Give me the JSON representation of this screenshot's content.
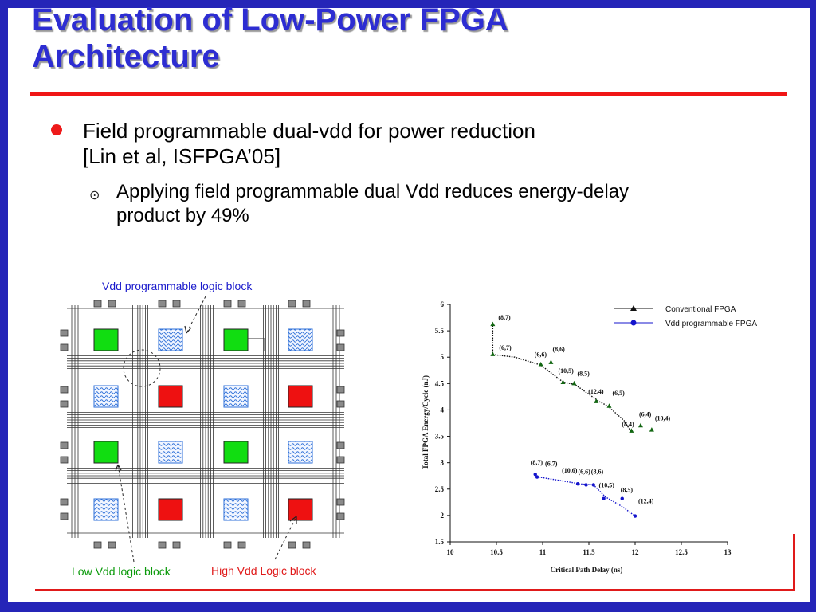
{
  "slide": {
    "title_line1": "Evaluation of Low-Power FPGA",
    "title_line2": "Architecture",
    "bullet1_line1": "Field programmable dual-vdd for power reduction",
    "bullet1_line2": "[Lin et al, ISFPGA’05]",
    "sub_line1": "Applying field programmable dual Vdd reduces energy-delay",
    "sub_line2": "product by 49%",
    "sub_bullet_glyph": "⊙"
  },
  "diagram": {
    "label_top": "Vdd programmable  logic block",
    "label_low": "Low Vdd logic block",
    "label_high": "High Vdd Logic block",
    "colors": {
      "low": "#11dd11",
      "high": "#ee1111",
      "programmable": "#2c6fd8",
      "label_blue": "#1b1bcc",
      "label_green": "#0a9a0a",
      "label_red": "#e01818"
    },
    "grid": [
      [
        "low",
        "programmable",
        "low",
        "programmable"
      ],
      [
        "programmable",
        "high",
        "programmable",
        "high"
      ],
      [
        "low",
        "programmable",
        "low",
        "programmable"
      ],
      [
        "programmable",
        "high",
        "programmable",
        "high"
      ]
    ]
  },
  "chart_data": {
    "type": "scatter",
    "xlabel": "Critical Path Delay (ns)",
    "ylabel": "Total FPGA Energy/Cycle (nJ)",
    "xlim": [
      10,
      13
    ],
    "ylim": [
      1.5,
      6
    ],
    "xticks": [
      "10",
      "10.5",
      "11",
      "11.5",
      "12",
      "12.5",
      "13"
    ],
    "yticks": [
      "1.5",
      "2",
      "2.5",
      "3",
      "3.5",
      "4",
      "4.5",
      "5",
      "5.5",
      "6"
    ],
    "legend_position": "top-right",
    "series": [
      {
        "name": "Conventional FPGA",
        "color": "#111111",
        "marker": "triangle",
        "frontier": [
          [
            10.46,
            5.6
          ],
          [
            10.46,
            5.05
          ],
          [
            10.7,
            5.0
          ],
          [
            10.98,
            4.85
          ],
          [
            11.22,
            4.53
          ],
          [
            11.35,
            4.48
          ],
          [
            11.62,
            4.15
          ],
          [
            11.7,
            4.08
          ],
          [
            11.88,
            3.8
          ],
          [
            11.96,
            3.58
          ]
        ],
        "points": [
          {
            "x": 10.46,
            "y": 5.62,
            "label": "(8,7)"
          },
          {
            "x": 10.46,
            "y": 5.05,
            "label": "(6,7)"
          },
          {
            "x": 10.98,
            "y": 4.86,
            "label": "(6,6)"
          },
          {
            "x": 11.09,
            "y": 4.9,
            "label": "(8,6)"
          },
          {
            "x": 11.22,
            "y": 4.52,
            "label": "(10,5)"
          },
          {
            "x": 11.34,
            "y": 4.5,
            "label": "(8,5)"
          },
          {
            "x": 11.58,
            "y": 4.16,
            "label": "(12,4)"
          },
          {
            "x": 11.72,
            "y": 4.07,
            "label": "(6,5)"
          },
          {
            "x": 11.96,
            "y": 3.6,
            "label": "(8,4)"
          },
          {
            "x": 12.06,
            "y": 3.7,
            "label": "(6,4)"
          },
          {
            "x": 12.18,
            "y": 3.62,
            "label": "(10,4)"
          }
        ]
      },
      {
        "name": "Vdd programmable FPGA",
        "color": "#1414cc",
        "marker": "circle",
        "frontier": [
          [
            10.92,
            2.79
          ],
          [
            10.95,
            2.73
          ],
          [
            11.2,
            2.66
          ],
          [
            11.4,
            2.6
          ],
          [
            11.55,
            2.58
          ],
          [
            11.68,
            2.35
          ],
          [
            11.85,
            2.18
          ],
          [
            12.0,
            1.99
          ]
        ],
        "points": [
          {
            "x": 10.92,
            "y": 2.78,
            "label": "(8,7)"
          },
          {
            "x": 10.94,
            "y": 2.73,
            "label": "(6,7)"
          },
          {
            "x": 11.38,
            "y": 2.6,
            "label": "(10,6)"
          },
          {
            "x": 11.47,
            "y": 2.58,
            "label": "(6,6)"
          },
          {
            "x": 11.55,
            "y": 2.58,
            "label": "(8,6)"
          },
          {
            "x": 11.66,
            "y": 2.32,
            "label": "(10,5)"
          },
          {
            "x": 11.86,
            "y": 2.32,
            "label": "(8,5)"
          },
          {
            "x": 12.0,
            "y": 1.99,
            "label": "(12,4)"
          }
        ]
      }
    ]
  }
}
